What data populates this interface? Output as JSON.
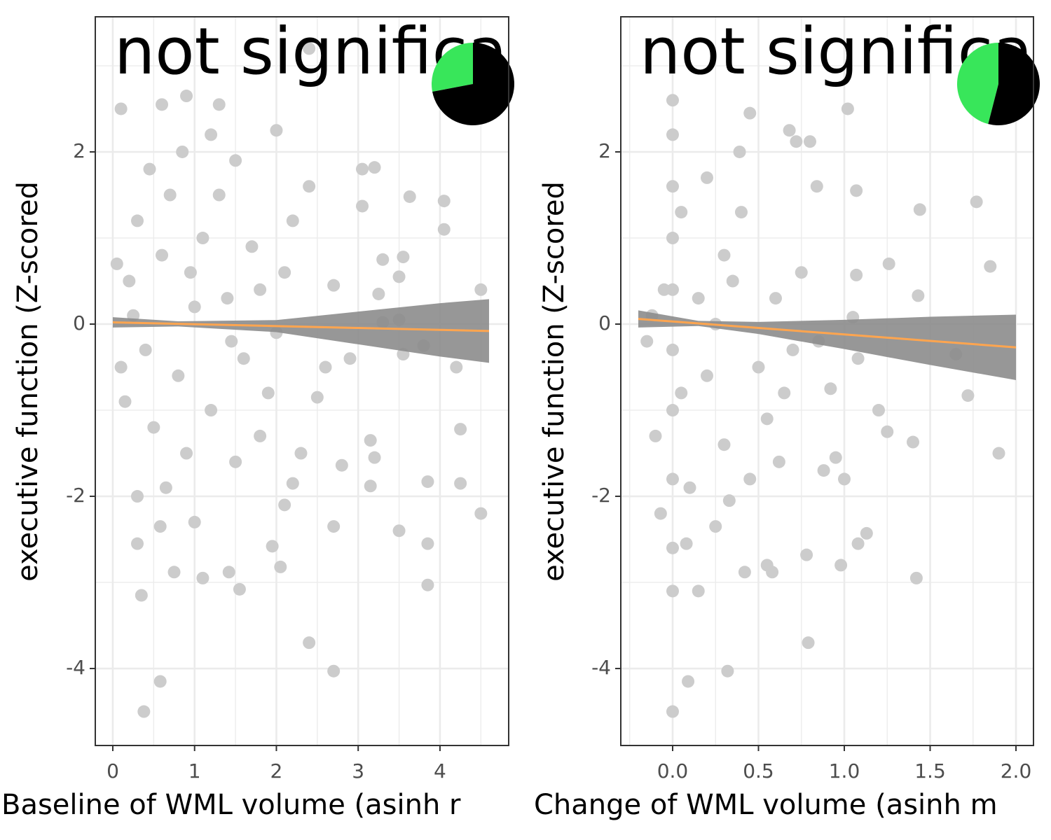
{
  "chart_data": [
    {
      "type": "scatter",
      "annotation": "not significa",
      "xlabel": "Baseline of WML volume (asinh r",
      "ylabel": "executive function (Z-scored",
      "xlim": [
        -0.214,
        4.84
      ],
      "ylim": [
        -4.894,
        3.569
      ],
      "xticks": [
        0,
        1,
        2,
        3,
        4
      ],
      "yticks": [
        -4,
        -2,
        0,
        2
      ],
      "x_minor_grid": [
        0.5,
        1.5,
        2.5,
        3.5,
        4.5
      ],
      "y_minor_grid": [
        -3,
        -1,
        1,
        3
      ],
      "grid": true,
      "color": "#cccccc",
      "points": {
        "x": [
          0.38,
          0.58,
          2.4,
          2.7,
          0.35,
          1.55,
          1.1,
          1.42,
          0.75,
          3.85,
          2.05,
          0.3,
          1.95,
          3.5,
          2.7,
          3.85,
          4.5,
          4.25,
          3.85,
          3.15,
          2.8,
          3.2,
          4.25,
          3.15,
          2.1,
          0.58,
          4.2,
          3.55,
          3.8,
          3.3,
          3.5,
          3.25,
          3.5,
          3.3,
          3.55,
          4.05,
          4.05,
          3.05,
          3.2,
          3.05,
          3.63,
          4.5,
          2.0,
          0.9,
          1.3,
          0.1,
          0.6,
          2.4,
          2.7,
          2.9,
          2.6,
          2.5,
          2.3,
          1.8,
          2.2,
          1.5,
          0.2,
          0.4,
          0.6,
          0.8,
          1.0,
          1.2,
          0.3,
          0.5,
          0.7,
          0.9,
          1.1,
          1.4,
          1.6,
          0.15,
          0.25,
          1.3,
          1.7,
          0.45,
          0.85,
          1.2,
          0.1,
          0.05,
          1.9,
          1.5,
          0.65,
          1.0,
          0.3,
          0.95,
          1.45,
          2.1,
          2.2,
          2.4,
          2.0,
          1.8
        ],
        "y": [
          -4.5,
          -4.15,
          -3.7,
          -4.03,
          -3.15,
          -3.08,
          -2.95,
          -2.88,
          -2.88,
          -3.03,
          -2.82,
          -2.55,
          -2.58,
          -2.4,
          -2.35,
          -2.55,
          -2.2,
          -1.85,
          -1.83,
          -1.88,
          -1.64,
          -1.55,
          -1.22,
          -1.35,
          -2.1,
          -2.35,
          -0.5,
          -0.35,
          -0.25,
          0.02,
          0.05,
          0.35,
          0.55,
          0.75,
          0.78,
          1.1,
          1.43,
          1.37,
          1.82,
          1.8,
          1.48,
          0.4,
          2.25,
          2.65,
          2.55,
          2.5,
          2.55,
          3.2,
          0.45,
          -0.4,
          -0.5,
          -0.85,
          -1.5,
          -1.3,
          -1.85,
          -1.6,
          0.5,
          -0.3,
          0.8,
          -0.6,
          0.2,
          -1.0,
          1.2,
          -1.2,
          1.5,
          -1.5,
          1.0,
          0.3,
          -0.4,
          -0.9,
          0.1,
          1.5,
          0.9,
          1.8,
          2.0,
          2.2,
          -0.5,
          0.7,
          -0.8,
          1.9,
          -1.9,
          -2.3,
          -2.0,
          0.6,
          -0.2,
          0.6,
          1.2,
          1.6,
          -0.1,
          0.4
        ]
      },
      "fit": {
        "color": "#ffa54f",
        "band_color": "#8c8c8c",
        "x": [
          0,
          0.8,
          2,
          3,
          4,
          4.6
        ],
        "y": [
          0.02,
          0.003,
          -0.023,
          -0.045,
          -0.067,
          -0.08
        ],
        "lower": [
          -0.04,
          -0.027,
          -0.093,
          -0.235,
          -0.377,
          -0.45
        ],
        "upper": [
          0.08,
          0.033,
          0.047,
          0.145,
          0.243,
          0.29
        ]
      },
      "pie": {
        "values": [
          28,
          72
        ],
        "colors": [
          "#38e65a",
          "#000000"
        ]
      }
    },
    {
      "type": "scatter",
      "annotation": "not significa",
      "xlabel": "Change of WML volume (asinh m",
      "ylabel": "executive function (Z-scored",
      "xlim": [
        -0.302,
        2.102
      ],
      "ylim": [
        -4.894,
        3.569
      ],
      "xticks": [
        {
          "value": 0,
          "label": "0.0"
        },
        {
          "value": 0.5,
          "label": "0.5"
        },
        {
          "value": 1,
          "label": "1.0"
        },
        {
          "value": 1.5,
          "label": "1.5"
        },
        {
          "value": 2,
          "label": "2.0"
        }
      ],
      "yticks": [
        -4,
        -2,
        0,
        2
      ],
      "x_minor_grid": [
        -0.25,
        0.25,
        0.75,
        1.25,
        1.75
      ],
      "y_minor_grid": [
        -3,
        -1,
        1,
        3
      ],
      "grid": true,
      "color": "#cccccc",
      "points": {
        "x": [
          0,
          0,
          0,
          0,
          0,
          0,
          0,
          0,
          0,
          0,
          0,
          -0.15,
          -0.1,
          -0.07,
          -0.05,
          -0.12,
          0.05,
          0.05,
          0.08,
          0.09,
          0.32,
          0.15,
          0.25,
          0.33,
          0.42,
          0.58,
          0.55,
          0.79,
          0.78,
          0.98,
          1.08,
          1.13,
          1.42,
          1.72,
          1.9,
          1.4,
          1.25,
          1.2,
          1.77,
          1.85,
          1.44,
          1.43,
          1.65,
          1.26,
          1.07,
          1.02,
          0.45,
          0.68,
          0.72,
          0.8,
          0.39,
          0.84,
          1.07,
          1.05,
          1.08,
          0.92,
          0.95,
          0.88,
          1.0,
          0.65,
          0.5,
          0.3,
          0.2,
          0.15,
          0.6,
          0.7,
          0.4,
          0.3,
          0.55,
          0.1,
          0.2,
          0.75,
          0.85,
          0.25,
          0.45,
          0.62,
          0.35
        ],
        "y": [
          -4.5,
          -3.1,
          -2.6,
          -1.8,
          -1.0,
          -0.3,
          0.4,
          1.0,
          1.6,
          2.2,
          2.6,
          -0.2,
          -1.3,
          -2.2,
          0.4,
          0.1,
          -0.8,
          1.3,
          -2.55,
          -4.15,
          -4.03,
          -3.1,
          -2.35,
          -2.05,
          -2.88,
          -2.88,
          -2.8,
          -3.7,
          -2.68,
          -2.8,
          -2.55,
          -2.43,
          -2.95,
          -0.83,
          -1.5,
          -1.37,
          -1.25,
          -1.0,
          1.42,
          0.67,
          1.33,
          0.33,
          -0.35,
          0.7,
          1.55,
          2.5,
          2.45,
          2.25,
          2.12,
          2.12,
          2.0,
          1.6,
          0.57,
          0.08,
          -0.4,
          -0.75,
          -1.55,
          -1.7,
          -1.8,
          -0.8,
          -0.5,
          0.8,
          -0.6,
          0.3,
          0.3,
          -0.3,
          1.3,
          -1.4,
          -1.1,
          -1.9,
          1.7,
          0.6,
          -0.2,
          0.0,
          -1.8,
          -1.6,
          0.5
        ]
      },
      "fit": {
        "color": "#ffa54f",
        "band_color": "#8c8c8c",
        "x": [
          -0.2,
          0.15,
          0.5,
          1,
          1.5,
          2
        ],
        "y": [
          0.06,
          0.008,
          -0.045,
          -0.12,
          -0.195,
          -0.27
        ],
        "lower": [
          -0.04,
          -0.022,
          -0.115,
          -0.29,
          -0.475,
          -0.65
        ],
        "upper": [
          0.16,
          0.038,
          0.025,
          0.05,
          0.085,
          0.11
        ]
      },
      "pie": {
        "values": [
          46,
          54
        ],
        "colors": [
          "#38e65a",
          "#000000"
        ]
      }
    }
  ]
}
